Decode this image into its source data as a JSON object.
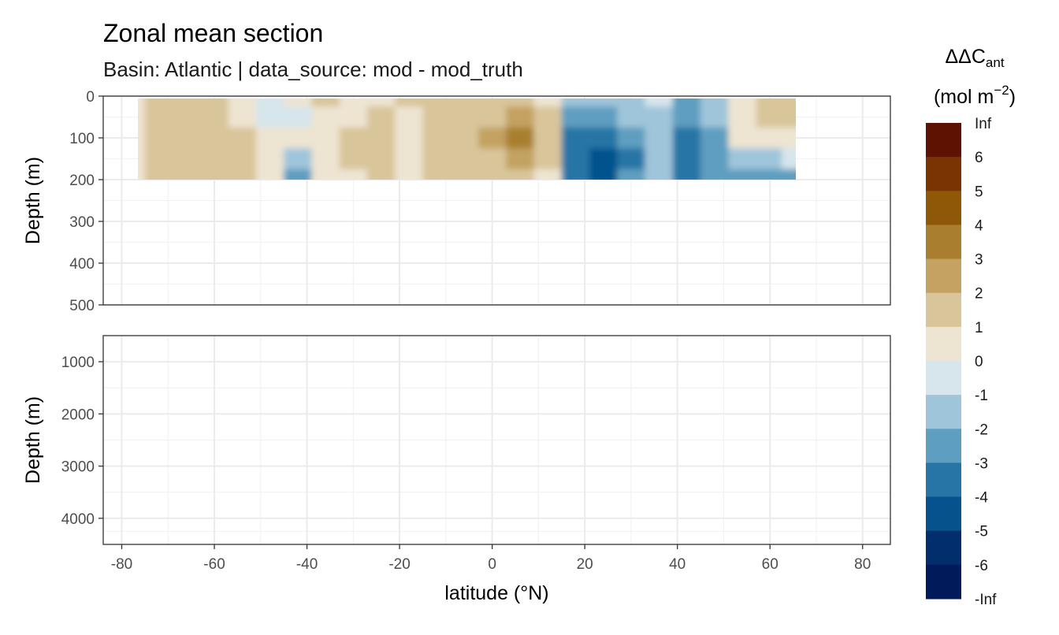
{
  "title": "Zonal mean section",
  "subtitle": "Basin: Atlantic | data_source: mod - mod_truth",
  "chart_data": {
    "type": "heatmap",
    "title": "Zonal mean section",
    "subtitle": "Basin: Atlantic | data_source: mod - mod_truth",
    "xlabel": "latitude (°N)",
    "ylabel": "Depth (m)",
    "xlim": [
      -84,
      86
    ],
    "x_ticks": [
      -80,
      -60,
      -40,
      -20,
      0,
      20,
      40,
      60,
      80
    ],
    "x_tick_labels": [
      "-80",
      "-60",
      "-40",
      "-20",
      "0",
      "20",
      "40",
      "60",
      "80"
    ],
    "panels": [
      {
        "name": "upper",
        "ylim": [
          0,
          500
        ],
        "reversed": true,
        "y_ticks": [
          0,
          100,
          200,
          300,
          400,
          500
        ],
        "y_tick_labels": [
          "0",
          "100",
          "200",
          "300",
          "400",
          "500"
        ]
      },
      {
        "name": "lower",
        "ylim": [
          500,
          4500
        ],
        "reversed": true,
        "y_ticks": [
          1000,
          2000,
          3000,
          4000
        ],
        "y_tick_labels": [
          "1000",
          "2000",
          "3000",
          "4000"
        ]
      }
    ],
    "grid": true,
    "data_extent": {
      "lat": [
        -78,
        65
      ],
      "depth": [
        0,
        200
      ]
    },
    "lat": [
      -78,
      -72,
      -66,
      -60,
      -54,
      -48,
      -42,
      -36,
      -30,
      -24,
      -18,
      -12,
      -6,
      0,
      6,
      12,
      18,
      24,
      30,
      36,
      42,
      48,
      54,
      60,
      65
    ],
    "depth": [
      0,
      50,
      100,
      150,
      200
    ],
    "values": [
      [
        0.5,
        1.2,
        1.5,
        1.8,
        0.5,
        -0.5,
        0.3,
        1.0,
        0.4,
        0.6,
        1.0,
        1.5,
        1.2,
        1.8,
        1.5,
        0.5,
        -1.5,
        -1.5,
        -1.2,
        -0.8,
        -2.5,
        -1.5,
        0.5,
        1.5,
        1.8
      ],
      [
        0.5,
        1.5,
        1.5,
        1.5,
        0.8,
        -0.5,
        -0.5,
        0.5,
        0.6,
        1.2,
        0.6,
        1.2,
        1.5,
        1.5,
        2.5,
        1.2,
        -2.5,
        -2.5,
        -1.5,
        -1.5,
        -2.5,
        -1.5,
        0.6,
        1.5,
        1.2
      ],
      [
        0.3,
        1.5,
        1.8,
        1.2,
        1.0,
        0.5,
        0.3,
        0.8,
        1.2,
        1.5,
        0.5,
        1.3,
        1.2,
        2.5,
        3.6,
        1.2,
        -3.2,
        -3.5,
        -2.5,
        -1.5,
        -3.5,
        -2.0,
        0.2,
        0.8,
        0.5
      ],
      [
        0.3,
        1.2,
        1.5,
        1.2,
        1.2,
        0.5,
        -1.5,
        0.3,
        1.0,
        1.2,
        0.8,
        1.2,
        1.5,
        1.8,
        2.8,
        1.5,
        -3.5,
        -4.5,
        -3.2,
        -1.2,
        -3.0,
        -2.5,
        -1.5,
        -1.5,
        -0.5
      ],
      [
        0.5,
        1.0,
        1.2,
        1.0,
        1.0,
        0.3,
        -2.2,
        0.3,
        0.8,
        1.0,
        0.5,
        1.0,
        1.0,
        1.2,
        1.8,
        0.8,
        -3.2,
        -4.2,
        -2.8,
        -1.8,
        -3.0,
        -2.8,
        -2.5,
        -2.0,
        -2.0
      ]
    ],
    "legend": {
      "title_main": "ΔΔC",
      "title_sub": "ant",
      "unit_pre": "(mol m",
      "unit_sup": "−2",
      "unit_post": ")",
      "placement": "right",
      "breaks": [
        "Inf",
        "6",
        "5",
        "4",
        "3",
        "2",
        "1",
        "0",
        "-1",
        "-2",
        "-3",
        "-4",
        "-5",
        "-6",
        "-Inf"
      ],
      "colors": [
        "#5e1202",
        "#7a3303",
        "#8f5708",
        "#a97f2f",
        "#c3a262",
        "#d9c59a",
        "#ede4d2",
        "#d7e5ec",
        "#9fc5da",
        "#5e9ec0",
        "#2774a6",
        "#05528c",
        "#032e6e",
        "#001a5a"
      ]
    }
  }
}
